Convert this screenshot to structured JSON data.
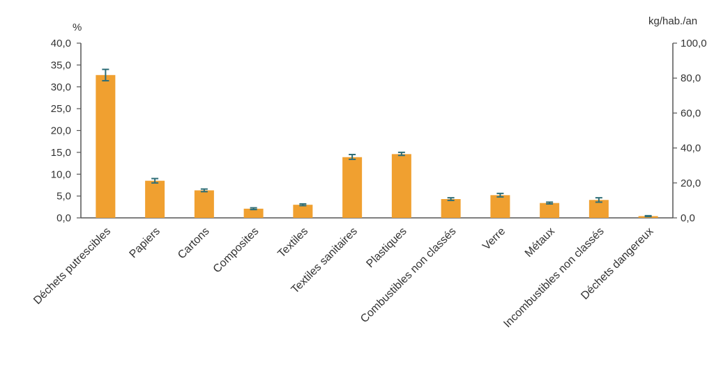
{
  "chart_data": {
    "type": "bar",
    "categories": [
      "Déchets putrescibles",
      "Papiers",
      "Cartons",
      "Composites",
      "Textiles",
      "Textiles sanitaires",
      "Plastiques",
      "Combustibles non classés",
      "Verre",
      "Métaux",
      "Incombustibles non classés",
      "Déchets dangereux"
    ],
    "series": [
      {
        "values": [
          32.7,
          8.5,
          6.3,
          2.1,
          3.0,
          13.9,
          14.6,
          4.3,
          5.2,
          3.4,
          4.1,
          0.4
        ],
        "error_low": [
          31.4,
          8.0,
          6.0,
          1.9,
          2.8,
          13.4,
          14.3,
          4.0,
          4.8,
          3.2,
          3.6,
          0.3
        ],
        "error_high": [
          34.0,
          9.0,
          6.6,
          2.3,
          3.2,
          14.5,
          15.0,
          4.6,
          5.6,
          3.6,
          4.6,
          0.5
        ]
      }
    ],
    "ylabel": "%",
    "ylabel_right": "kg/hab./an",
    "ylim": [
      0,
      40
    ],
    "ylim_right": [
      0,
      100
    ],
    "yticks": [
      "0,0",
      "5,0",
      "10,0",
      "15,0",
      "20,0",
      "25,0",
      "30,0",
      "35,0",
      "40,0"
    ],
    "yticks_right": [
      "0,0",
      "20,0",
      "40,0",
      "60,0",
      "80,0",
      "100,0"
    ],
    "grid": false,
    "colors": {
      "bar": "#F0A030",
      "error_bar": "#2E6E78",
      "axis": "#555555"
    }
  }
}
